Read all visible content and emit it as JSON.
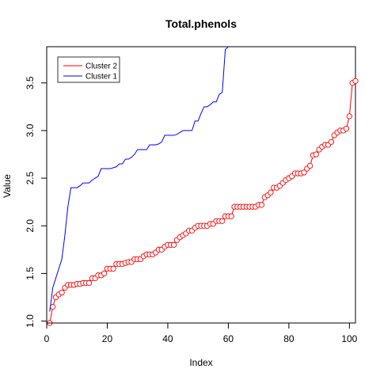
{
  "chart_data": {
    "type": "line",
    "title": "Total.phenols",
    "xlabel": "Index",
    "ylabel": "Value",
    "xlim": [
      0,
      102
    ],
    "ylim": [
      0.98,
      3.88
    ],
    "x_ticks": [
      0,
      20,
      40,
      60,
      80,
      100
    ],
    "y_ticks": [
      1.0,
      1.5,
      2.0,
      2.5,
      3.0,
      3.5
    ],
    "grid": false,
    "legend_position": "top-left",
    "series": [
      {
        "name": "Cluster 2",
        "color": "#ff0000",
        "style": "line-and-points",
        "values": [
          0.98,
          1.15,
          1.25,
          1.28,
          1.3,
          1.35,
          1.38,
          1.38,
          1.38,
          1.39,
          1.39,
          1.4,
          1.4,
          1.4,
          1.45,
          1.45,
          1.48,
          1.48,
          1.5,
          1.55,
          1.55,
          1.55,
          1.6,
          1.6,
          1.6,
          1.61,
          1.62,
          1.62,
          1.65,
          1.65,
          1.65,
          1.68,
          1.7,
          1.7,
          1.7,
          1.72,
          1.75,
          1.75,
          1.78,
          1.8,
          1.8,
          1.8,
          1.85,
          1.88,
          1.9,
          1.92,
          1.95,
          1.95,
          1.98,
          2.0,
          2.0,
          2.0,
          2.0,
          2.02,
          2.02,
          2.05,
          2.05,
          2.05,
          2.1,
          2.1,
          2.1,
          2.2,
          2.2,
          2.2,
          2.2,
          2.2,
          2.2,
          2.2,
          2.2,
          2.22,
          2.22,
          2.3,
          2.32,
          2.35,
          2.4,
          2.4,
          2.42,
          2.45,
          2.48,
          2.5,
          2.52,
          2.55,
          2.55,
          2.55,
          2.56,
          2.6,
          2.63,
          2.74,
          2.75,
          2.8,
          2.83,
          2.85,
          2.85,
          2.88,
          2.95,
          2.98,
          3.0,
          3.0,
          3.02,
          3.15,
          3.5,
          3.52
        ]
      },
      {
        "name": "Cluster 1",
        "color": "#0000ff",
        "style": "line",
        "values": [
          1.1,
          1.35,
          1.45,
          1.55,
          1.65,
          1.9,
          2.2,
          2.4,
          2.4,
          2.4,
          2.42,
          2.45,
          2.45,
          2.45,
          2.48,
          2.5,
          2.52,
          2.6,
          2.6,
          2.6,
          2.6,
          2.61,
          2.62,
          2.65,
          2.65,
          2.7,
          2.7,
          2.72,
          2.75,
          2.8,
          2.8,
          2.8,
          2.8,
          2.85,
          2.85,
          2.85,
          2.86,
          2.88,
          2.95,
          2.95,
          2.95,
          2.95,
          2.96,
          2.98,
          3.0,
          3.0,
          3.0,
          3.0,
          3.1,
          3.1,
          3.18,
          3.25,
          3.25,
          3.27,
          3.3,
          3.3,
          3.38,
          3.4,
          3.85,
          3.88
        ]
      }
    ]
  }
}
